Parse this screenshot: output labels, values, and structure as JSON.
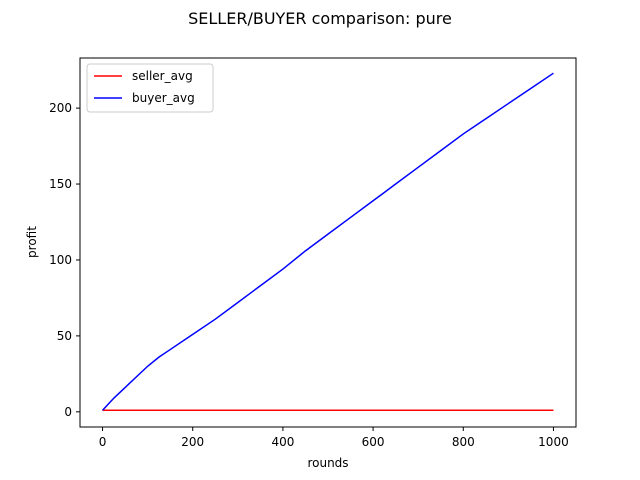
{
  "chart_data": {
    "type": "line",
    "title": "SELLER/BUYER comparison: pure",
    "xlabel": "rounds",
    "ylabel": "profit",
    "xlim": [
      -50,
      1050
    ],
    "ylim": [
      -10,
      233
    ],
    "x_ticks": [
      0,
      200,
      400,
      600,
      800,
      1000
    ],
    "y_ticks": [
      0,
      50,
      100,
      150,
      200
    ],
    "grid": false,
    "legend_position": "top-left",
    "series": [
      {
        "name": "seller_avg",
        "color": "#ff0000",
        "x": [
          0,
          100,
          200,
          300,
          400,
          500,
          600,
          700,
          800,
          900,
          1000
        ],
        "y": [
          1,
          1,
          1,
          1,
          1,
          1,
          1,
          1,
          1,
          1,
          1
        ]
      },
      {
        "name": "buyer_avg",
        "color": "#0000ff",
        "x": [
          0,
          25,
          50,
          75,
          100,
          125,
          150,
          200,
          250,
          300,
          350,
          400,
          450,
          500,
          550,
          600,
          650,
          700,
          750,
          800,
          850,
          900,
          950,
          1000
        ],
        "y": [
          1,
          9,
          16,
          23,
          30,
          36,
          41,
          51,
          61,
          72,
          83,
          94,
          106,
          117,
          128,
          139,
          150,
          161,
          172,
          183,
          193,
          203,
          213,
          223
        ]
      }
    ]
  }
}
